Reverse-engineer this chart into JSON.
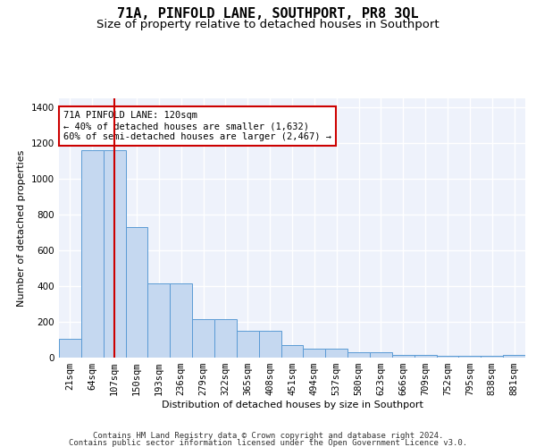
{
  "title": "71A, PINFOLD LANE, SOUTHPORT, PR8 3QL",
  "subtitle": "Size of property relative to detached houses in Southport",
  "xlabel": "Distribution of detached houses by size in Southport",
  "ylabel": "Number of detached properties",
  "categories": [
    "21sqm",
    "64sqm",
    "107sqm",
    "150sqm",
    "193sqm",
    "236sqm",
    "279sqm",
    "322sqm",
    "365sqm",
    "408sqm",
    "451sqm",
    "494sqm",
    "537sqm",
    "580sqm",
    "623sqm",
    "666sqm",
    "709sqm",
    "752sqm",
    "795sqm",
    "838sqm",
    "881sqm"
  ],
  "bar_heights": [
    105,
    1160,
    1160,
    730,
    415,
    415,
    215,
    215,
    148,
    148,
    70,
    50,
    50,
    28,
    28,
    15,
    15,
    10,
    10,
    10,
    15
  ],
  "bar_color": "#c5d8f0",
  "bar_edge_color": "#5b9bd5",
  "red_line_x": 2,
  "annotation_text": "71A PINFOLD LANE: 120sqm\n← 40% of detached houses are smaller (1,632)\n60% of semi-detached houses are larger (2,467) →",
  "annotation_box_color": "#ffffff",
  "annotation_box_edge_color": "#cc0000",
  "red_line_color": "#cc0000",
  "ylim": [
    0,
    1450
  ],
  "yticks": [
    0,
    200,
    400,
    600,
    800,
    1000,
    1200,
    1400
  ],
  "footer_line1": "Contains HM Land Registry data © Crown copyright and database right 2024.",
  "footer_line2": "Contains public sector information licensed under the Open Government Licence v3.0.",
  "bg_color": "#eef2fb",
  "grid_color": "#ffffff",
  "title_fontsize": 11,
  "subtitle_fontsize": 9.5,
  "axis_label_fontsize": 8,
  "tick_fontsize": 7.5,
  "footer_fontsize": 6.5
}
